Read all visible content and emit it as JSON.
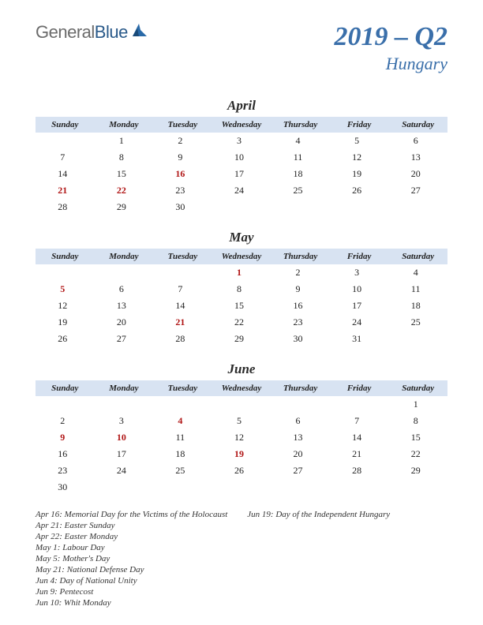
{
  "logo": {
    "gray": "General",
    "blue": "Blue"
  },
  "title": {
    "main": "2019 – Q2",
    "sub": "Hungary"
  },
  "dayHeaders": [
    "Sunday",
    "Monday",
    "Tuesday",
    "Wednesday",
    "Thursday",
    "Friday",
    "Saturday"
  ],
  "months": [
    {
      "name": "April",
      "weeks": [
        [
          "",
          "1",
          "2",
          "3",
          "4",
          "5",
          "6"
        ],
        [
          "7",
          "8",
          "9",
          "10",
          "11",
          "12",
          "13"
        ],
        [
          "14",
          "15",
          "16",
          "17",
          "18",
          "19",
          "20"
        ],
        [
          "21",
          "22",
          "23",
          "24",
          "25",
          "26",
          "27"
        ],
        [
          "28",
          "29",
          "30",
          "",
          "",
          "",
          ""
        ]
      ],
      "holidays": [
        "16",
        "21",
        "22"
      ]
    },
    {
      "name": "May",
      "weeks": [
        [
          "",
          "",
          "",
          "1",
          "2",
          "3",
          "4"
        ],
        [
          "5",
          "6",
          "7",
          "8",
          "9",
          "10",
          "11"
        ],
        [
          "12",
          "13",
          "14",
          "15",
          "16",
          "17",
          "18"
        ],
        [
          "19",
          "20",
          "21",
          "22",
          "23",
          "24",
          "25"
        ],
        [
          "26",
          "27",
          "28",
          "29",
          "30",
          "31",
          ""
        ]
      ],
      "holidays": [
        "1",
        "5",
        "21"
      ]
    },
    {
      "name": "June",
      "weeks": [
        [
          "",
          "",
          "",
          "",
          "",
          "",
          "1"
        ],
        [
          "2",
          "3",
          "4",
          "5",
          "6",
          "7",
          "8"
        ],
        [
          "9",
          "10",
          "11",
          "12",
          "13",
          "14",
          "15"
        ],
        [
          "16",
          "17",
          "18",
          "19",
          "20",
          "21",
          "22"
        ],
        [
          "23",
          "24",
          "25",
          "26",
          "27",
          "28",
          "29"
        ],
        [
          "30",
          "",
          "",
          "",
          "",
          "",
          ""
        ]
      ],
      "holidays": [
        "4",
        "9",
        "10",
        "19"
      ]
    }
  ],
  "holidayList": {
    "col1": [
      "Apr 16: Memorial Day for the Victims of the Holocaust",
      "Apr 21: Easter Sunday",
      "Apr 22: Easter Monday",
      "May 1: Labour Day",
      "May 5: Mother's Day",
      "May 21: National Defense Day",
      "Jun 4: Day of National Unity",
      "Jun 9: Pentecost",
      "Jun 10: Whit Monday"
    ],
    "col2": [
      "Jun 19: Day of the Independent Hungary"
    ]
  },
  "colors": {
    "headerBg": "#d8e3f2",
    "titleColor": "#3a6faa",
    "holidayColor": "#b01515"
  }
}
